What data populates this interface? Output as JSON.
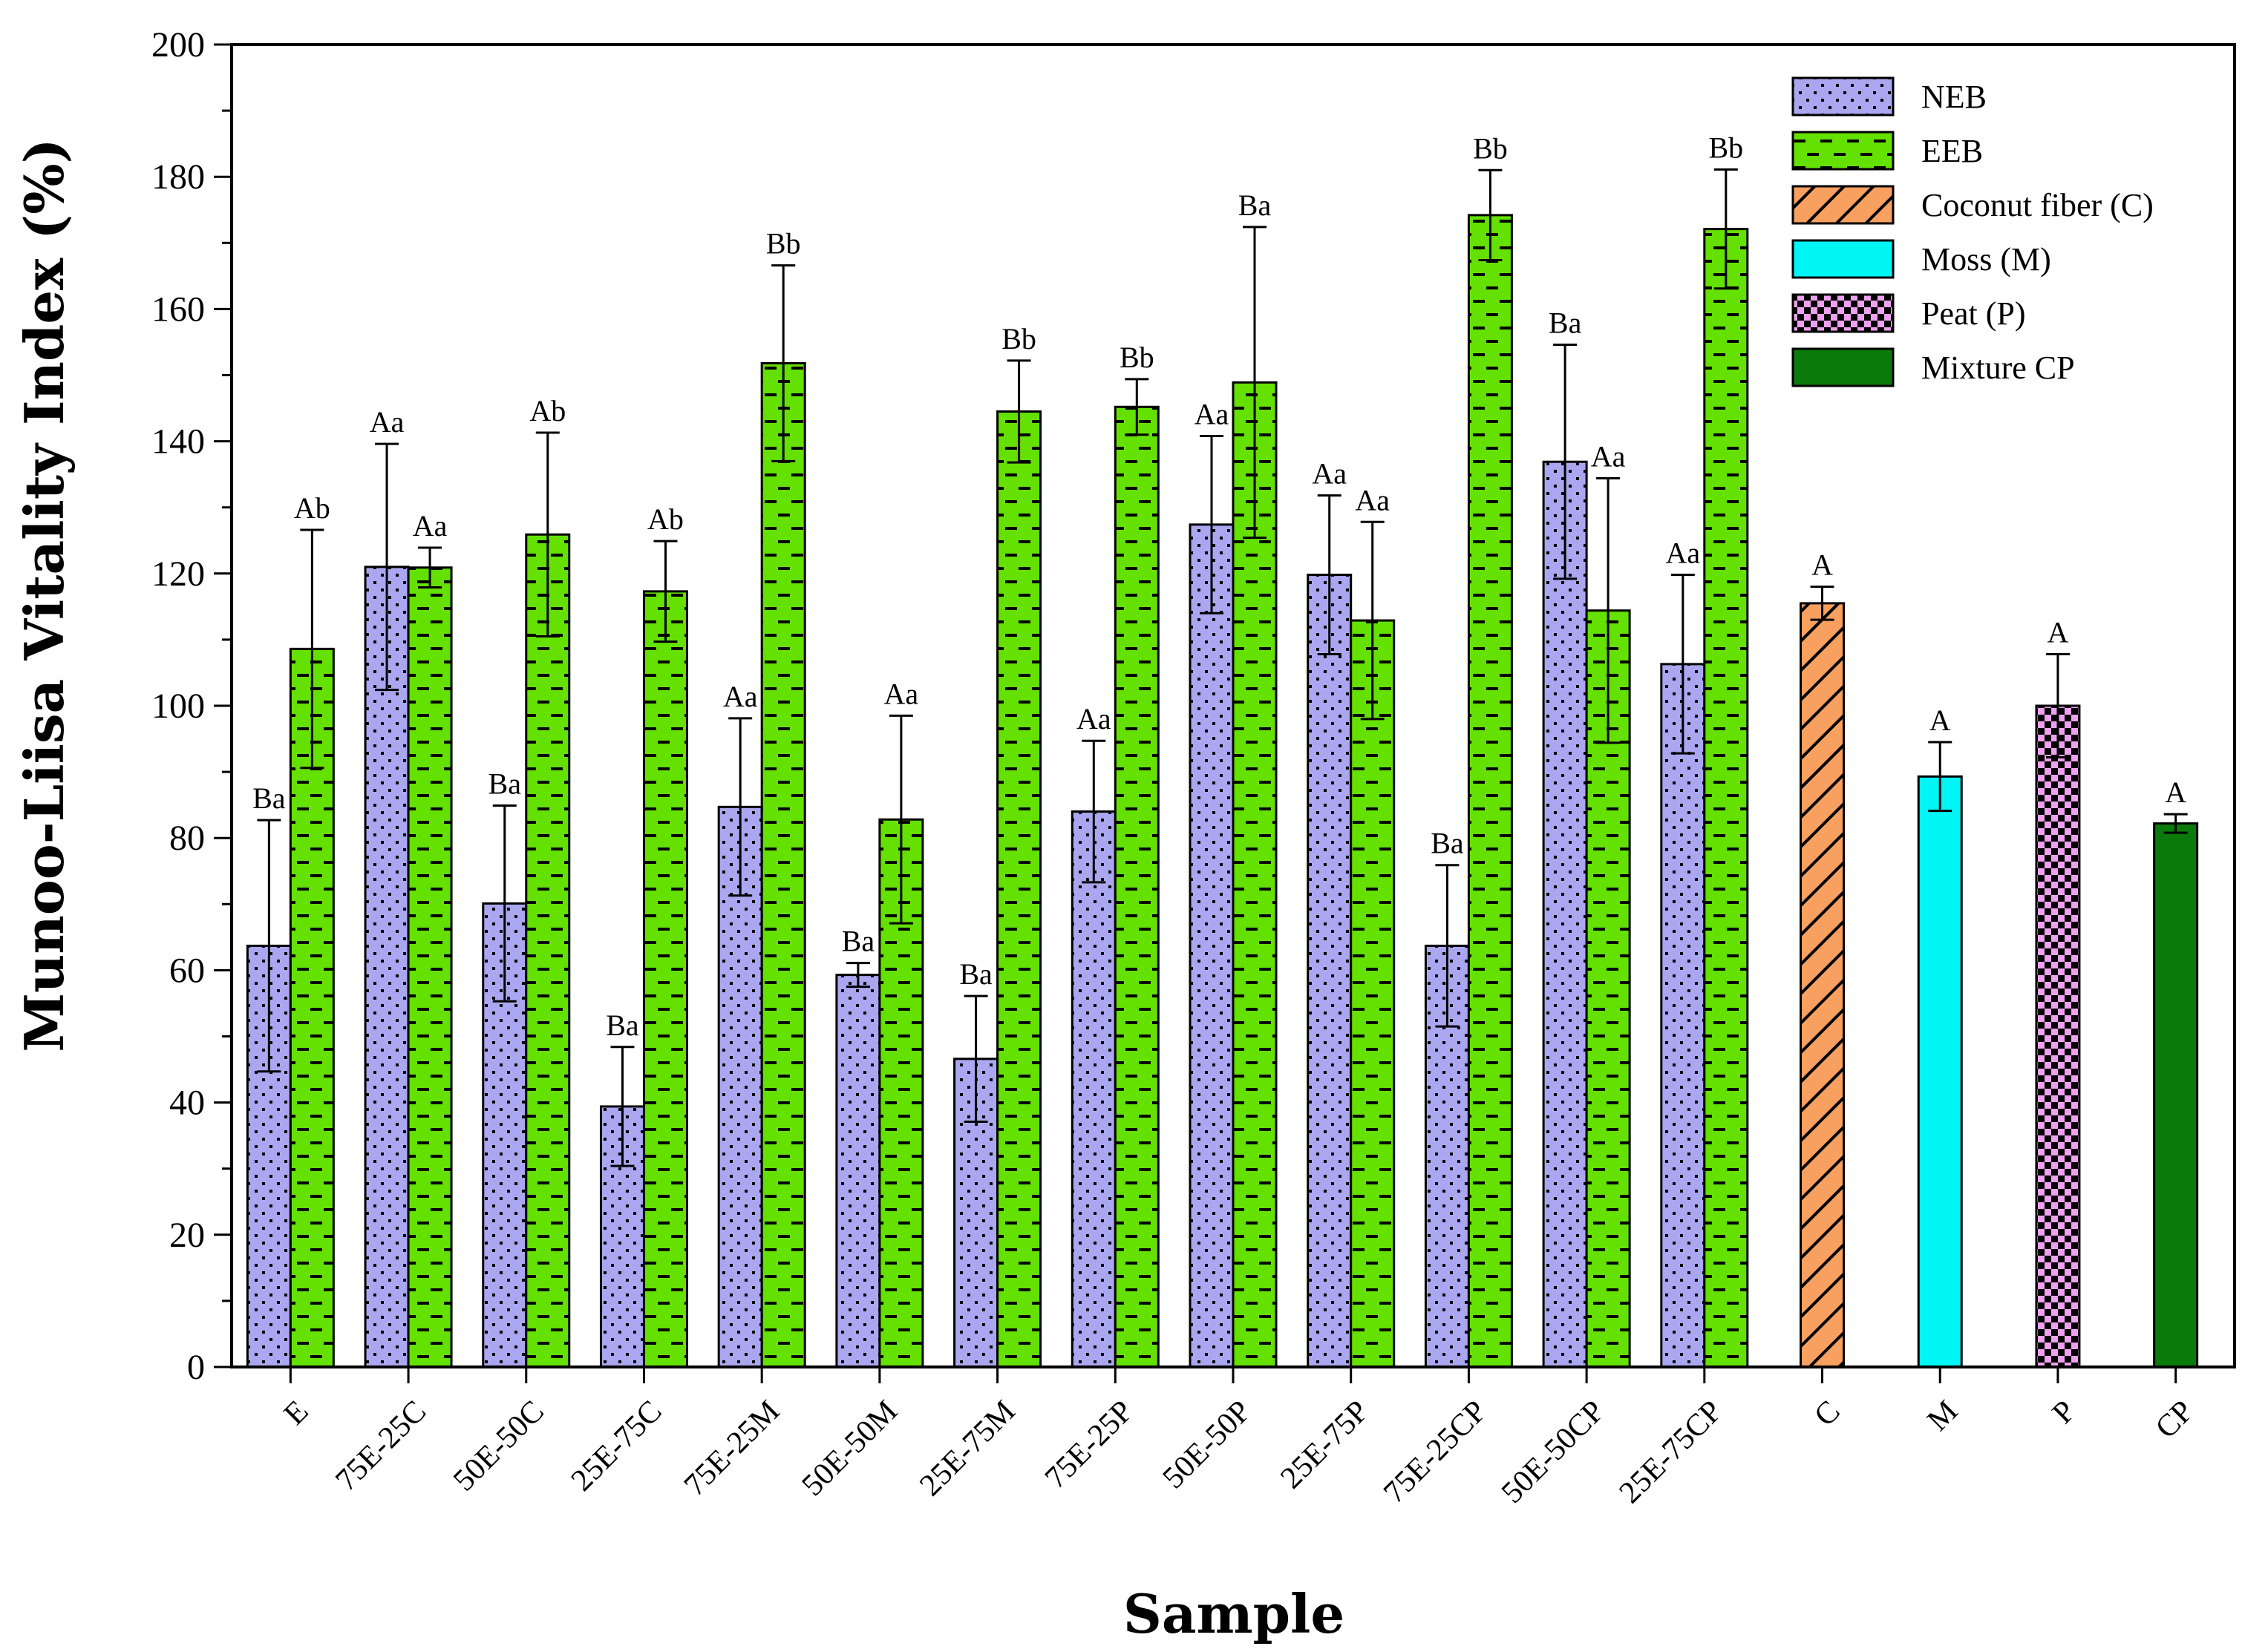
{
  "chart_data": {
    "type": "bar",
    "ylabel": "Munoo-Liisa Vitality Index (%)",
    "xlabel": "Sample",
    "ylim": [
      0,
      200
    ],
    "yticks": [
      0,
      20,
      40,
      60,
      80,
      100,
      120,
      140,
      160,
      180,
      200
    ],
    "categories": [
      "E",
      "75E-25C",
      "50E-50C",
      "25E-75C",
      "75E-25M",
      "50E-50M",
      "25E-75M",
      "75E-25P",
      "50E-50P",
      "25E-75P",
      "75E-25CP",
      "50E-50CP",
      "25E-75CP",
      "C",
      "M",
      "P",
      "CP"
    ],
    "series": [
      {
        "name": "NEB",
        "color": "#aaa7f0",
        "pattern": "dots",
        "values": [
          63.7,
          121,
          70.1,
          39.4,
          84.7,
          59.3,
          46.6,
          84,
          127.4,
          119.8,
          63.7,
          136.9,
          106.3,
          null,
          null,
          null,
          null
        ],
        "errors": [
          19,
          18.6,
          14.8,
          9,
          13.4,
          1.8,
          9.5,
          10.7,
          13.4,
          12,
          12.2,
          17.7,
          13.5,
          null,
          null,
          null,
          null
        ],
        "labels": [
          "Ba",
          "Aa",
          "Ba",
          "Ba",
          "Aa",
          "Ba",
          "Ba",
          "Aa",
          "Aa",
          "Aa",
          "Ba",
          "Ba",
          "Aa",
          null,
          null,
          null,
          null
        ]
      },
      {
        "name": "EEB",
        "color": "#64e100",
        "pattern": "dashes",
        "values": [
          108.6,
          120.9,
          125.9,
          117.3,
          151.8,
          82.8,
          144.5,
          145.2,
          148.9,
          112.9,
          174.2,
          114.4,
          172.1,
          null,
          null,
          null,
          null
        ],
        "errors": [
          18,
          3,
          15.4,
          7.6,
          14.8,
          15.7,
          7.7,
          4.2,
          23.5,
          14.9,
          6.8,
          20,
          9,
          null,
          null,
          null,
          null
        ],
        "labels": [
          "Ab",
          "Aa",
          "Ab",
          "Ab",
          "Bb",
          "Aa",
          "Bb",
          "Bb",
          "Ba",
          "Aa",
          "Bb",
          "Aa",
          "Bb",
          null,
          null,
          null,
          null
        ]
      },
      {
        "name": "Coconut fiber (C)",
        "color": "#f7a060",
        "pattern": "hatch",
        "values": [
          null,
          null,
          null,
          null,
          null,
          null,
          null,
          null,
          null,
          null,
          null,
          null,
          null,
          115.5,
          null,
          null,
          null
        ],
        "errors": [
          null,
          null,
          null,
          null,
          null,
          null,
          null,
          null,
          null,
          null,
          null,
          null,
          null,
          2.5,
          null,
          null,
          null
        ],
        "labels": [
          null,
          null,
          null,
          null,
          null,
          null,
          null,
          null,
          null,
          null,
          null,
          null,
          null,
          "A",
          null,
          null,
          null
        ]
      },
      {
        "name": "Moss (M)",
        "color": "#00f5f5",
        "pattern": "solid",
        "values": [
          null,
          null,
          null,
          null,
          null,
          null,
          null,
          null,
          null,
          null,
          null,
          null,
          null,
          null,
          89.3,
          null,
          null
        ],
        "errors": [
          null,
          null,
          null,
          null,
          null,
          null,
          null,
          null,
          null,
          null,
          null,
          null,
          null,
          null,
          5.2,
          null,
          null
        ],
        "labels": [
          null,
          null,
          null,
          null,
          null,
          null,
          null,
          null,
          null,
          null,
          null,
          null,
          null,
          null,
          "A",
          null,
          null
        ]
      },
      {
        "name": "Peat (P)",
        "color": "#f0a0f0",
        "pattern": "checker",
        "values": [
          null,
          null,
          null,
          null,
          null,
          null,
          null,
          null,
          null,
          null,
          null,
          null,
          null,
          null,
          null,
          100,
          null
        ],
        "errors": [
          null,
          null,
          null,
          null,
          null,
          null,
          null,
          null,
          null,
          null,
          null,
          null,
          null,
          null,
          null,
          7.8,
          null
        ],
        "labels": [
          null,
          null,
          null,
          null,
          null,
          null,
          null,
          null,
          null,
          null,
          null,
          null,
          null,
          null,
          null,
          "A",
          null
        ]
      },
      {
        "name": "Mixture CP",
        "color": "#0a7a0a",
        "pattern": "solid",
        "values": [
          null,
          null,
          null,
          null,
          null,
          null,
          null,
          null,
          null,
          null,
          null,
          null,
          null,
          null,
          null,
          null,
          82.2
        ],
        "errors": [
          null,
          null,
          null,
          null,
          null,
          null,
          null,
          null,
          null,
          null,
          null,
          null,
          null,
          null,
          null,
          null,
          1.4
        ],
        "labels": [
          null,
          null,
          null,
          null,
          null,
          null,
          null,
          null,
          null,
          null,
          null,
          null,
          null,
          null,
          null,
          null,
          "A"
        ]
      }
    ],
    "legend_position": "top-right",
    "grid": false
  }
}
